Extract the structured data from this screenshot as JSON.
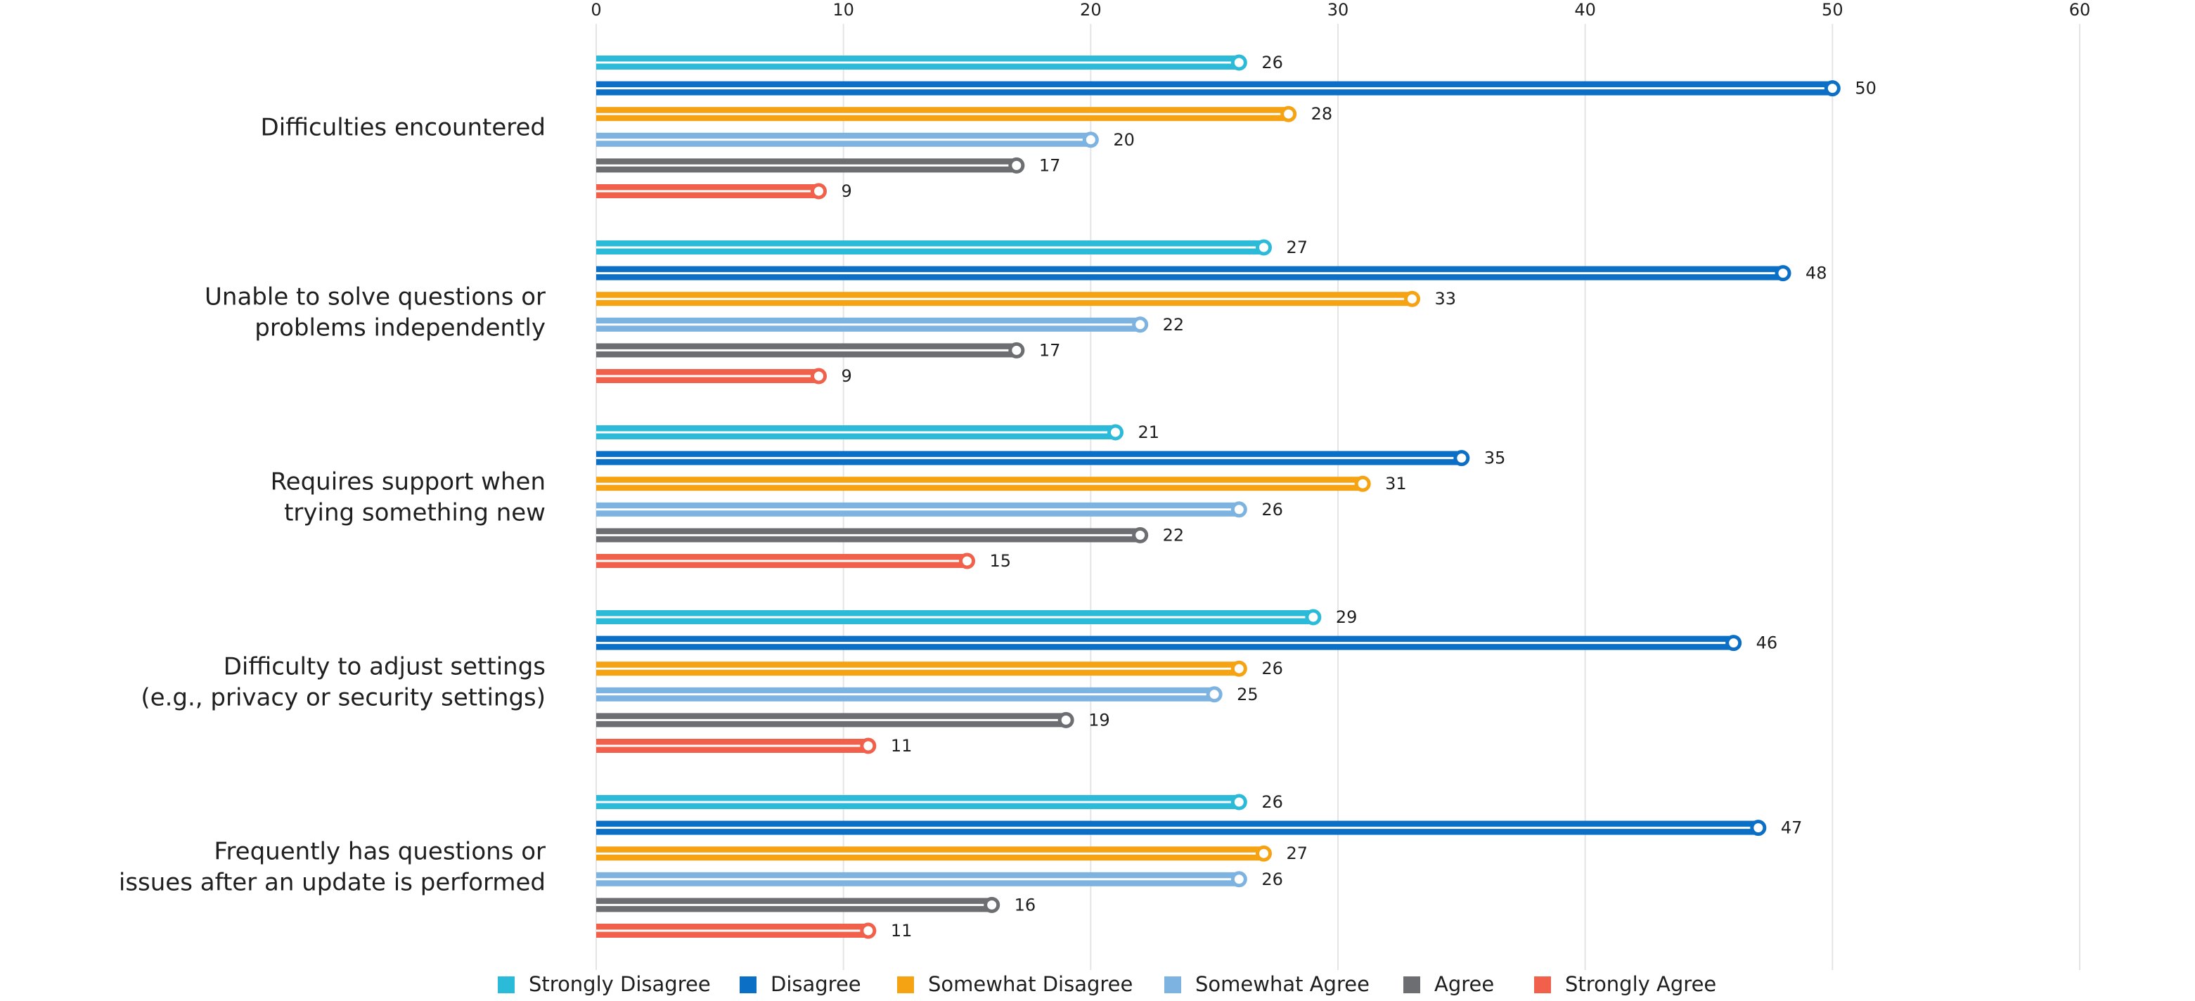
{
  "colors": {
    "Strongly Disagree": "#2bbbd8",
    "Disagree": "#0b6fc6",
    "Somewhat Disagree": "#f5a313",
    "Somewhat Agree": "#7db3e0",
    "Agree": "#6d6e71",
    "Strongly Agree": "#f0604a",
    "grid": "#e4e4e4",
    "text": "#1f1f1f"
  },
  "chart_data": {
    "type": "bar",
    "orientation": "horizontal",
    "title": "",
    "xlabel": "",
    "ylabel": "",
    "xlim": [
      0,
      60
    ],
    "x_ticks": [
      "0",
      "10",
      "20",
      "30",
      "40",
      "50",
      "60"
    ],
    "x_axis_position": "top",
    "grid": true,
    "legend_position": "bottom",
    "categories": [
      [
        "Difficulties encountered"
      ],
      [
        "Unable to solve questions or",
        "problems independently"
      ],
      [
        "Requires support when",
        "trying something new"
      ],
      [
        "Difficulty to adjust settings",
        "(e.g., privacy or security settings)"
      ],
      [
        "Frequently has questions or",
        "issues after an update is performed"
      ]
    ],
    "series": [
      {
        "name": "Strongly Disagree",
        "values": [
          26,
          27,
          21,
          29,
          26
        ]
      },
      {
        "name": "Disagree",
        "values": [
          50,
          48,
          35,
          46,
          47
        ]
      },
      {
        "name": "Somewhat Disagree",
        "values": [
          28,
          33,
          31,
          26,
          27
        ]
      },
      {
        "name": "Somewhat Agree",
        "values": [
          20,
          22,
          26,
          25,
          26
        ]
      },
      {
        "name": "Agree",
        "values": [
          17,
          17,
          22,
          19,
          16
        ]
      },
      {
        "name": "Strongly Agree",
        "values": [
          9,
          9,
          15,
          11,
          11
        ]
      }
    ]
  }
}
